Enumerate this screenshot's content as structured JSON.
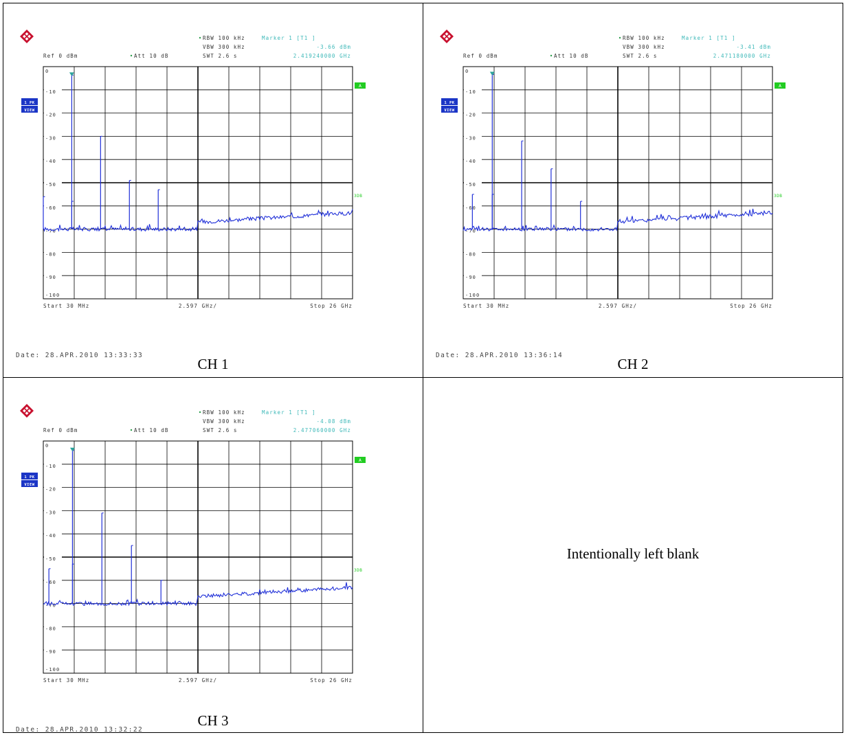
{
  "blank_cell_text": "Intentionally left blank",
  "colors": {
    "trace": "#1f2fd8",
    "marker_text": "#3cb8b8",
    "badge_bg": "#1b35c6",
    "green": "#22cc22"
  },
  "icons": {
    "logo": "rohde-schwarz-logo-icon",
    "marker": "marker-triangle-icon"
  },
  "panels": [
    {
      "caption": "CH 1",
      "header": {
        "rbw": "RBW 100 kHz",
        "vbw": "VBW 300 kHz",
        "swt": "SWT 2.6 s",
        "marker_label": "Marker 1 [T1 ]",
        "marker_level": "-3.66 dBm",
        "marker_freq": "2.419240000 GHz",
        "ref": "Ref  0 dBm",
        "att": "Att  10 dB"
      },
      "badge_line1": "1 PK",
      "badge_line2": "VIEW",
      "trace_label": "A",
      "limit_label": "3DB",
      "footer": {
        "start": "Start 30 MHz",
        "span": "2.597 GHz/",
        "stop": "Stop 26 GHz"
      },
      "date": "Date: 28.APR.2010  13:33:33"
    },
    {
      "caption": "CH 2",
      "header": {
        "rbw": "RBW 100 kHz",
        "vbw": "VBW 300 kHz",
        "swt": "SWT 2.6 s",
        "marker_label": "Marker 1 [T1 ]",
        "marker_level": "-3.41 dBm",
        "marker_freq": "2.471180000 GHz",
        "ref": "Ref  0 dBm",
        "att": "Att  10 dB"
      },
      "badge_line1": "1 PK",
      "badge_line2": "VIEW",
      "trace_label": "A",
      "limit_label": "3DB",
      "footer": {
        "start": "Start 30 MHz",
        "span": "2.597 GHz/",
        "stop": "Stop 26 GHz"
      },
      "date": "Date: 28.APR.2010  13:36:14"
    },
    {
      "caption": "CH 3",
      "header": {
        "rbw": "RBW 100 kHz",
        "vbw": "VBW 300 kHz",
        "swt": "SWT 2.6 s",
        "marker_label": "Marker 1 [T1 ]",
        "marker_level": "-4.08 dBm",
        "marker_freq": "2.477060000 GHz",
        "ref": "Ref  0 dBm",
        "att": "Att  10 dB"
      },
      "badge_line1": "1 PK",
      "badge_line2": "VIEW",
      "trace_label": "A",
      "limit_label": "3DB",
      "footer": {
        "start": "Start 30 MHz",
        "span": "2.597 GHz/",
        "stop": "Stop 26 GHz"
      },
      "date": "Date: 28.APR.2010  13:32:22"
    }
  ],
  "chart_data": [
    {
      "type": "line",
      "xlim": [
        0.03,
        26
      ],
      "ylim": [
        -100,
        0
      ],
      "y_ticks": [
        "0",
        "-10",
        "-20",
        "-30",
        "-40",
        "-50",
        "-60",
        "-70",
        "-80",
        "-90",
        "-100"
      ],
      "grid": true,
      "noise_floor_db": {
        "below_13ghz": -70,
        "at_13ghz": -67,
        "at_26ghz": -63
      },
      "spikes": [
        {
          "x": 0.03,
          "y": -56
        },
        {
          "x": 2.42,
          "y": -3.66
        },
        {
          "x": 2.42,
          "y": -58
        },
        {
          "x": 4.84,
          "y": -30
        },
        {
          "x": 7.26,
          "y": -49
        },
        {
          "x": 9.68,
          "y": -53
        }
      ]
    },
    {
      "type": "line",
      "xlim": [
        0.03,
        26
      ],
      "ylim": [
        -100,
        0
      ],
      "y_ticks": [
        "0",
        "-10",
        "-20",
        "-30",
        "-40",
        "-50",
        "-60",
        "-70",
        "-80",
        "-90",
        "-100"
      ],
      "grid": true,
      "noise_floor_db": {
        "below_13ghz": -70,
        "at_13ghz": -67,
        "at_26ghz": -63
      },
      "spikes": [
        {
          "x": 0.8,
          "y": -55
        },
        {
          "x": 2.47,
          "y": -3.41
        },
        {
          "x": 2.47,
          "y": -55
        },
        {
          "x": 4.94,
          "y": -32
        },
        {
          "x": 7.41,
          "y": -44
        },
        {
          "x": 9.88,
          "y": -58
        }
      ]
    },
    {
      "type": "line",
      "xlim": [
        0.03,
        26
      ],
      "ylim": [
        -100,
        0
      ],
      "y_ticks": [
        "0",
        "-10",
        "-20",
        "-30",
        "-40",
        "-50",
        "-60",
        "-70",
        "-80",
        "-90",
        "-100"
      ],
      "grid": true,
      "noise_floor_db": {
        "below_13ghz": -70,
        "at_13ghz": -67,
        "at_26ghz": -63
      },
      "spikes": [
        {
          "x": 0.5,
          "y": -55
        },
        {
          "x": 2.48,
          "y": -4.08
        },
        {
          "x": 2.48,
          "y": -53
        },
        {
          "x": 4.95,
          "y": -31
        },
        {
          "x": 7.43,
          "y": -45
        },
        {
          "x": 9.91,
          "y": -60
        }
      ]
    }
  ]
}
